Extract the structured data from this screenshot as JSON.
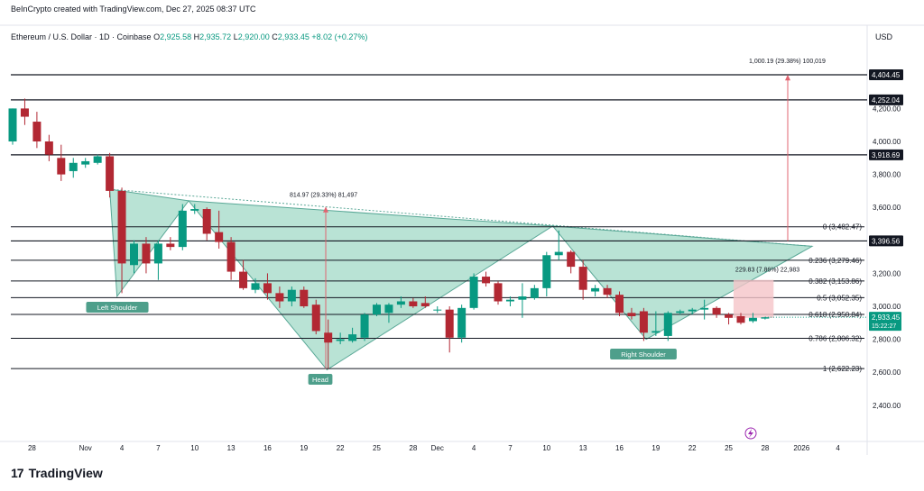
{
  "header": {
    "credit": "BeInCrypto created with TradingView.com, Dec 27, 2025 08:37 UTC",
    "symbol": "Ethereum / U.S. Dollar · 1D · Coinbase",
    "o_label": "O",
    "o_value": "2,925.58",
    "h_label": "H",
    "h_value": "2,935.72",
    "l_label": "L",
    "l_value": "2,920.00",
    "c_label": "C",
    "c_value": "2,933.45",
    "change": "+8.02 (+0.27%)",
    "currency": "USD"
  },
  "branding": {
    "logo_text": "TradingView",
    "logo_mark": "17"
  },
  "colors": {
    "up": "#089981",
    "down": "#b22833",
    "pattern_fill": "#a8dccb",
    "pattern_stroke": "#5aa897",
    "measure": "#e06470",
    "line": "#131722",
    "label_bg": "#4e9f8b",
    "box_fill": "#f5c4c8"
  },
  "chart_data": {
    "type": "candlestick",
    "x_ticks": [
      "28",
      "Nov",
      "4",
      "7",
      "10",
      "13",
      "16",
      "19",
      "22",
      "25",
      "28",
      "Dec",
      "4",
      "7",
      "10",
      "13",
      "16",
      "19",
      "22",
      "25",
      "28",
      "2026",
      "4"
    ],
    "y_ticks": [
      "4,200.00",
      "4,000.00",
      "3,800.00",
      "3,600.00",
      "3,400.00",
      "3,200.00",
      "3,000.00",
      "2,800.00",
      "2,600.00",
      "2,400.00"
    ],
    "y_tick_values": [
      4200,
      4000,
      3800,
      3600,
      3400,
      3200,
      3000,
      2800,
      2600,
      2400
    ],
    "ylim": [
      2230,
      4520
    ],
    "candles": [
      {
        "o": 4000,
        "h": 4200,
        "l": 3980,
        "c": 4200
      },
      {
        "o": 4200,
        "h": 4260,
        "l": 4100,
        "c": 4150
      },
      {
        "o": 4120,
        "h": 4180,
        "l": 3960,
        "c": 4000
      },
      {
        "o": 4000,
        "h": 4040,
        "l": 3880,
        "c": 3920
      },
      {
        "o": 3900,
        "h": 3980,
        "l": 3760,
        "c": 3800
      },
      {
        "o": 3820,
        "h": 3900,
        "l": 3780,
        "c": 3870
      },
      {
        "o": 3860,
        "h": 3900,
        "l": 3840,
        "c": 3880
      },
      {
        "o": 3870,
        "h": 3920,
        "l": 3860,
        "c": 3910
      },
      {
        "o": 3910,
        "h": 3930,
        "l": 3660,
        "c": 3700
      },
      {
        "o": 3700,
        "h": 3720,
        "l": 3080,
        "c": 3260
      },
      {
        "o": 3250,
        "h": 3400,
        "l": 3200,
        "c": 3380
      },
      {
        "o": 3380,
        "h": 3420,
        "l": 3200,
        "c": 3260
      },
      {
        "o": 3260,
        "h": 3400,
        "l": 3160,
        "c": 3380
      },
      {
        "o": 3380,
        "h": 3420,
        "l": 3340,
        "c": 3360
      },
      {
        "o": 3360,
        "h": 3620,
        "l": 3340,
        "c": 3580
      },
      {
        "o": 3580,
        "h": 3620,
        "l": 3560,
        "c": 3590
      },
      {
        "o": 3590,
        "h": 3600,
        "l": 3400,
        "c": 3440
      },
      {
        "o": 3450,
        "h": 3580,
        "l": 3350,
        "c": 3390
      },
      {
        "o": 3390,
        "h": 3420,
        "l": 3160,
        "c": 3210
      },
      {
        "o": 3210,
        "h": 3280,
        "l": 3100,
        "c": 3110
      },
      {
        "o": 3100,
        "h": 3170,
        "l": 3080,
        "c": 3140
      },
      {
        "o": 3140,
        "h": 3200,
        "l": 3040,
        "c": 3080
      },
      {
        "o": 3080,
        "h": 3120,
        "l": 2990,
        "c": 3030
      },
      {
        "o": 3030,
        "h": 3120,
        "l": 3000,
        "c": 3100
      },
      {
        "o": 3100,
        "h": 3120,
        "l": 2990,
        "c": 3000
      },
      {
        "o": 3010,
        "h": 3040,
        "l": 2830,
        "c": 2850
      },
      {
        "o": 2840,
        "h": 2920,
        "l": 2620,
        "c": 2780
      },
      {
        "o": 2790,
        "h": 2840,
        "l": 2770,
        "c": 2800
      },
      {
        "o": 2790,
        "h": 2870,
        "l": 2780,
        "c": 2830
      },
      {
        "o": 2810,
        "h": 2960,
        "l": 2790,
        "c": 2950
      },
      {
        "o": 2950,
        "h": 3020,
        "l": 2940,
        "c": 3010
      },
      {
        "o": 2960,
        "h": 3020,
        "l": 2900,
        "c": 3010
      },
      {
        "o": 3010,
        "h": 3060,
        "l": 2990,
        "c": 3030
      },
      {
        "o": 3030,
        "h": 3050,
        "l": 2990,
        "c": 3000
      },
      {
        "o": 3020,
        "h": 3060,
        "l": 2990,
        "c": 3000
      },
      {
        "o": 2980,
        "h": 3000,
        "l": 2960,
        "c": 2980
      },
      {
        "o": 2980,
        "h": 3000,
        "l": 2720,
        "c": 2810
      },
      {
        "o": 2810,
        "h": 3010,
        "l": 2780,
        "c": 2990
      },
      {
        "o": 2990,
        "h": 3200,
        "l": 2980,
        "c": 3180
      },
      {
        "o": 3180,
        "h": 3210,
        "l": 3120,
        "c": 3140
      },
      {
        "o": 3140,
        "h": 3150,
        "l": 3010,
        "c": 3030
      },
      {
        "o": 3030,
        "h": 3060,
        "l": 3000,
        "c": 3040
      },
      {
        "o": 3040,
        "h": 3140,
        "l": 2930,
        "c": 3060
      },
      {
        "o": 3050,
        "h": 3130,
        "l": 3040,
        "c": 3110
      },
      {
        "o": 3110,
        "h": 3330,
        "l": 3060,
        "c": 3310
      },
      {
        "o": 3310,
        "h": 3460,
        "l": 3280,
        "c": 3330
      },
      {
        "o": 3330,
        "h": 3340,
        "l": 3200,
        "c": 3240
      },
      {
        "o": 3240,
        "h": 3280,
        "l": 3040,
        "c": 3100
      },
      {
        "o": 3090,
        "h": 3130,
        "l": 3060,
        "c": 3110
      },
      {
        "o": 3110,
        "h": 3130,
        "l": 3050,
        "c": 3070
      },
      {
        "o": 3070,
        "h": 3090,
        "l": 2940,
        "c": 2960
      },
      {
        "o": 2960,
        "h": 2990,
        "l": 2920,
        "c": 2940
      },
      {
        "o": 2970,
        "h": 2990,
        "l": 2790,
        "c": 2840
      },
      {
        "o": 2840,
        "h": 2970,
        "l": 2820,
        "c": 2850
      },
      {
        "o": 2820,
        "h": 2970,
        "l": 2790,
        "c": 2960
      },
      {
        "o": 2960,
        "h": 2980,
        "l": 2950,
        "c": 2970
      },
      {
        "o": 2970,
        "h": 2990,
        "l": 2950,
        "c": 2980
      },
      {
        "o": 2980,
        "h": 3040,
        "l": 2920,
        "c": 2990
      },
      {
        "o": 2990,
        "h": 3000,
        "l": 2930,
        "c": 2950
      },
      {
        "o": 2950,
        "h": 2960,
        "l": 2890,
        "c": 2930
      },
      {
        "o": 2940,
        "h": 2960,
        "l": 2890,
        "c": 2900
      },
      {
        "o": 2910,
        "h": 2960,
        "l": 2900,
        "c": 2930
      },
      {
        "o": 2925.58,
        "h": 2935.72,
        "l": 2920,
        "c": 2933.45
      }
    ],
    "horizontal_levels": [
      {
        "price": 4404.45,
        "label": "4,404.45"
      },
      {
        "price": 4252.04,
        "label": "4,252.04"
      },
      {
        "price": 3918.69,
        "label": "3,918.69"
      },
      {
        "price": 3396.56,
        "label": "3,396.56"
      }
    ],
    "fib_levels": [
      {
        "price": 3482.47,
        "label": "0 (3,482.47)"
      },
      {
        "price": 3279.46,
        "label": "0.236 (3,279.46)"
      },
      {
        "price": 3153.86,
        "label": "0.382 (3,153.86)"
      },
      {
        "price": 3052.35,
        "label": "0.5 (3,052.35)"
      },
      {
        "price": 2950.84,
        "label": "0.618 (2,950.84)"
      },
      {
        "price": 2806.32,
        "label": "0.786 (2,806.32)"
      },
      {
        "price": 2622.23,
        "label": "1 (2,622.23)"
      }
    ],
    "current_price": "2,933.45",
    "countdown": "15:22:27",
    "pattern_labels": {
      "left": "Left Shoulder",
      "head": "Head",
      "right": "Right Shoulder"
    },
    "measurements": {
      "head_depth": "814.97 (29.33%) 81,497",
      "target": "1,000.19 (29.38%) 100,019",
      "box": "229.83 (7.86%) 22,983"
    }
  }
}
